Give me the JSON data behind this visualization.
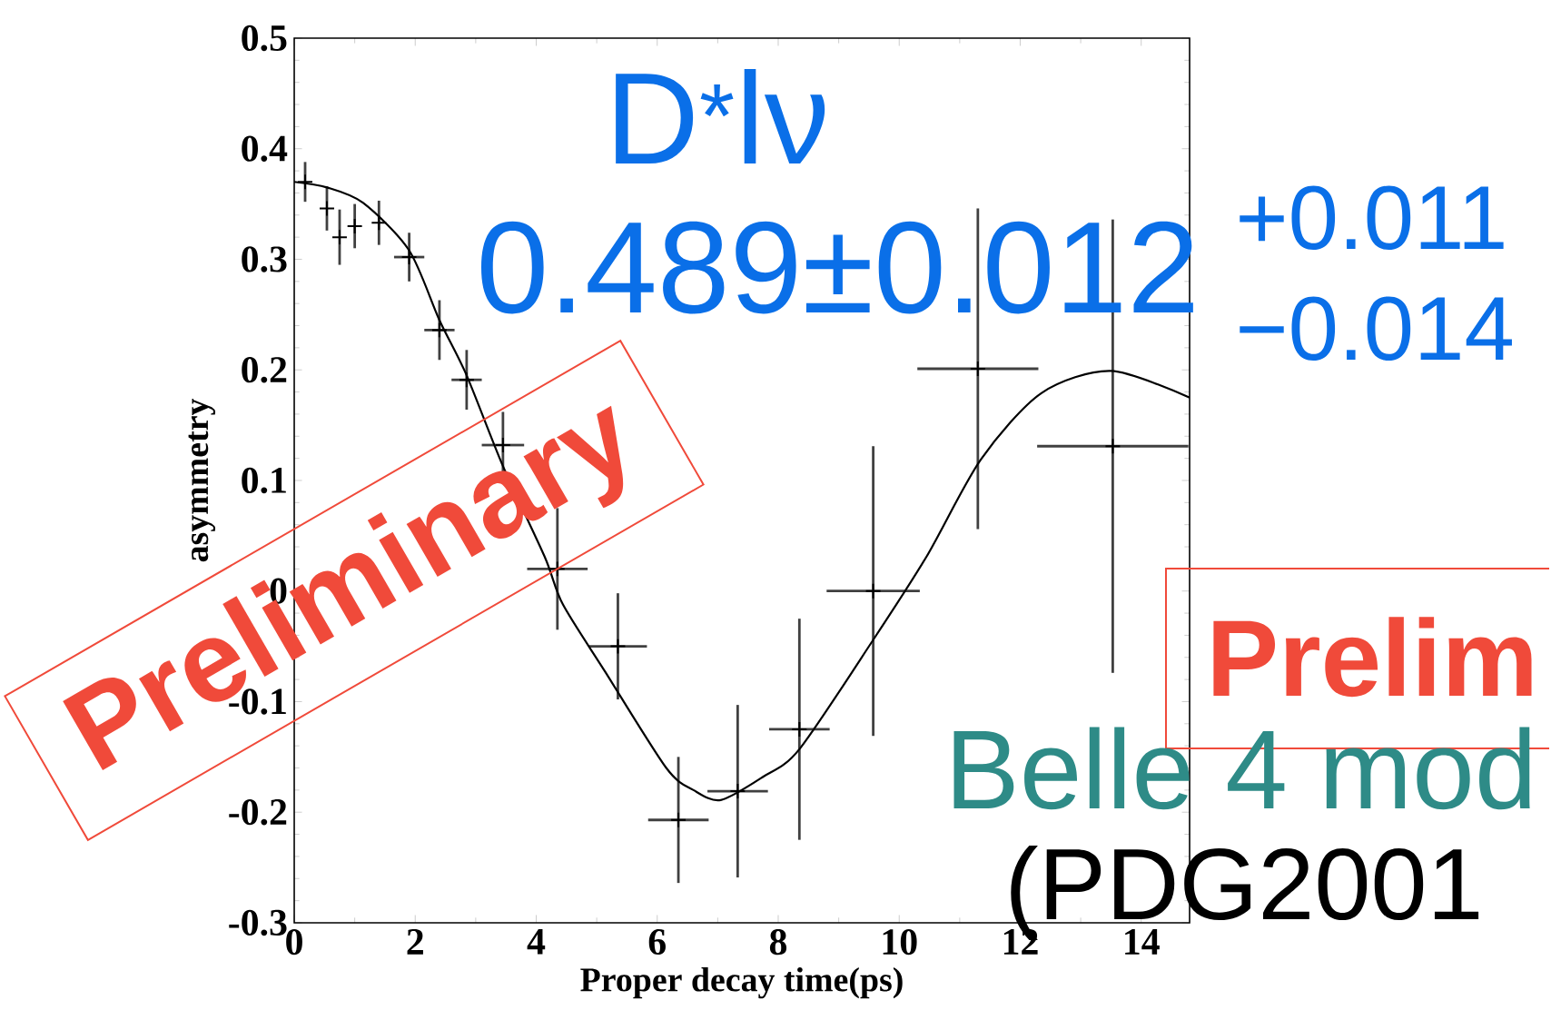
{
  "chart_data": {
    "type": "scatter",
    "xlabel": "Proper decay time(ps)",
    "ylabel": "asymmetry",
    "xlim": [
      0,
      14.8
    ],
    "ylim": [
      -0.3,
      0.5
    ],
    "xticks": [
      0,
      2,
      4,
      6,
      8,
      10,
      12,
      14
    ],
    "yticks": [
      -0.3,
      -0.2,
      -0.1,
      0,
      0.1,
      0.2,
      0.3,
      0.4,
      0.5
    ],
    "series": [
      {
        "marker": "cross",
        "color": "#000000",
        "x": [
          0.18,
          0.54,
          0.75,
          1.0,
          1.4,
          1.9,
          2.4,
          2.85,
          3.45,
          4.35,
          5.35,
          6.35,
          7.33,
          8.35,
          9.57,
          11.3,
          13.53
        ],
        "values": [
          0.37,
          0.346,
          0.32,
          0.33,
          0.333,
          0.302,
          0.236,
          0.191,
          0.132,
          0.02,
          -0.05,
          -0.207,
          -0.181,
          -0.125,
          0.0,
          0.201,
          0.131
        ],
        "errors": [
          0.018,
          0.02,
          0.025,
          0.02,
          0.02,
          0.022,
          0.027,
          0.027,
          0.03,
          0.055,
          0.048,
          0.057,
          0.078,
          0.1,
          0.131,
          0.145,
          0.205
        ],
        "xerrors": [
          null,
          null,
          null,
          null,
          null,
          0.25,
          0.25,
          0.25,
          0.35,
          0.5,
          0.48,
          0.5,
          0.5,
          0.5,
          0.77,
          1.0,
          1.25
        ]
      },
      {
        "type": "line",
        "color": "#000000",
        "x": [
          0,
          0.54,
          1.14,
          1.9,
          2.4,
          2.85,
          3.45,
          4.14,
          4.44,
          5.14,
          6.15,
          6.6,
          7.05,
          7.75,
          8.35,
          9.56,
          10.45,
          11.35,
          12.35,
          13.5,
          14.8
        ],
        "values": [
          0.37,
          0.365,
          0.351,
          0.308,
          0.245,
          0.195,
          0.113,
          0.031,
          -0.012,
          -0.073,
          -0.16,
          -0.18,
          -0.189,
          -0.168,
          -0.143,
          -0.045,
          0.031,
          0.119,
          0.179,
          0.199,
          0.175
        ]
      }
    ],
    "annotations": [
      "D$^{*}$lν",
      "0.489±0.012",
      "+0.011",
      "−0.014",
      "Preliminary",
      "Prelim",
      "Belle 4 mod",
      "(PDG2001"
    ]
  }
}
